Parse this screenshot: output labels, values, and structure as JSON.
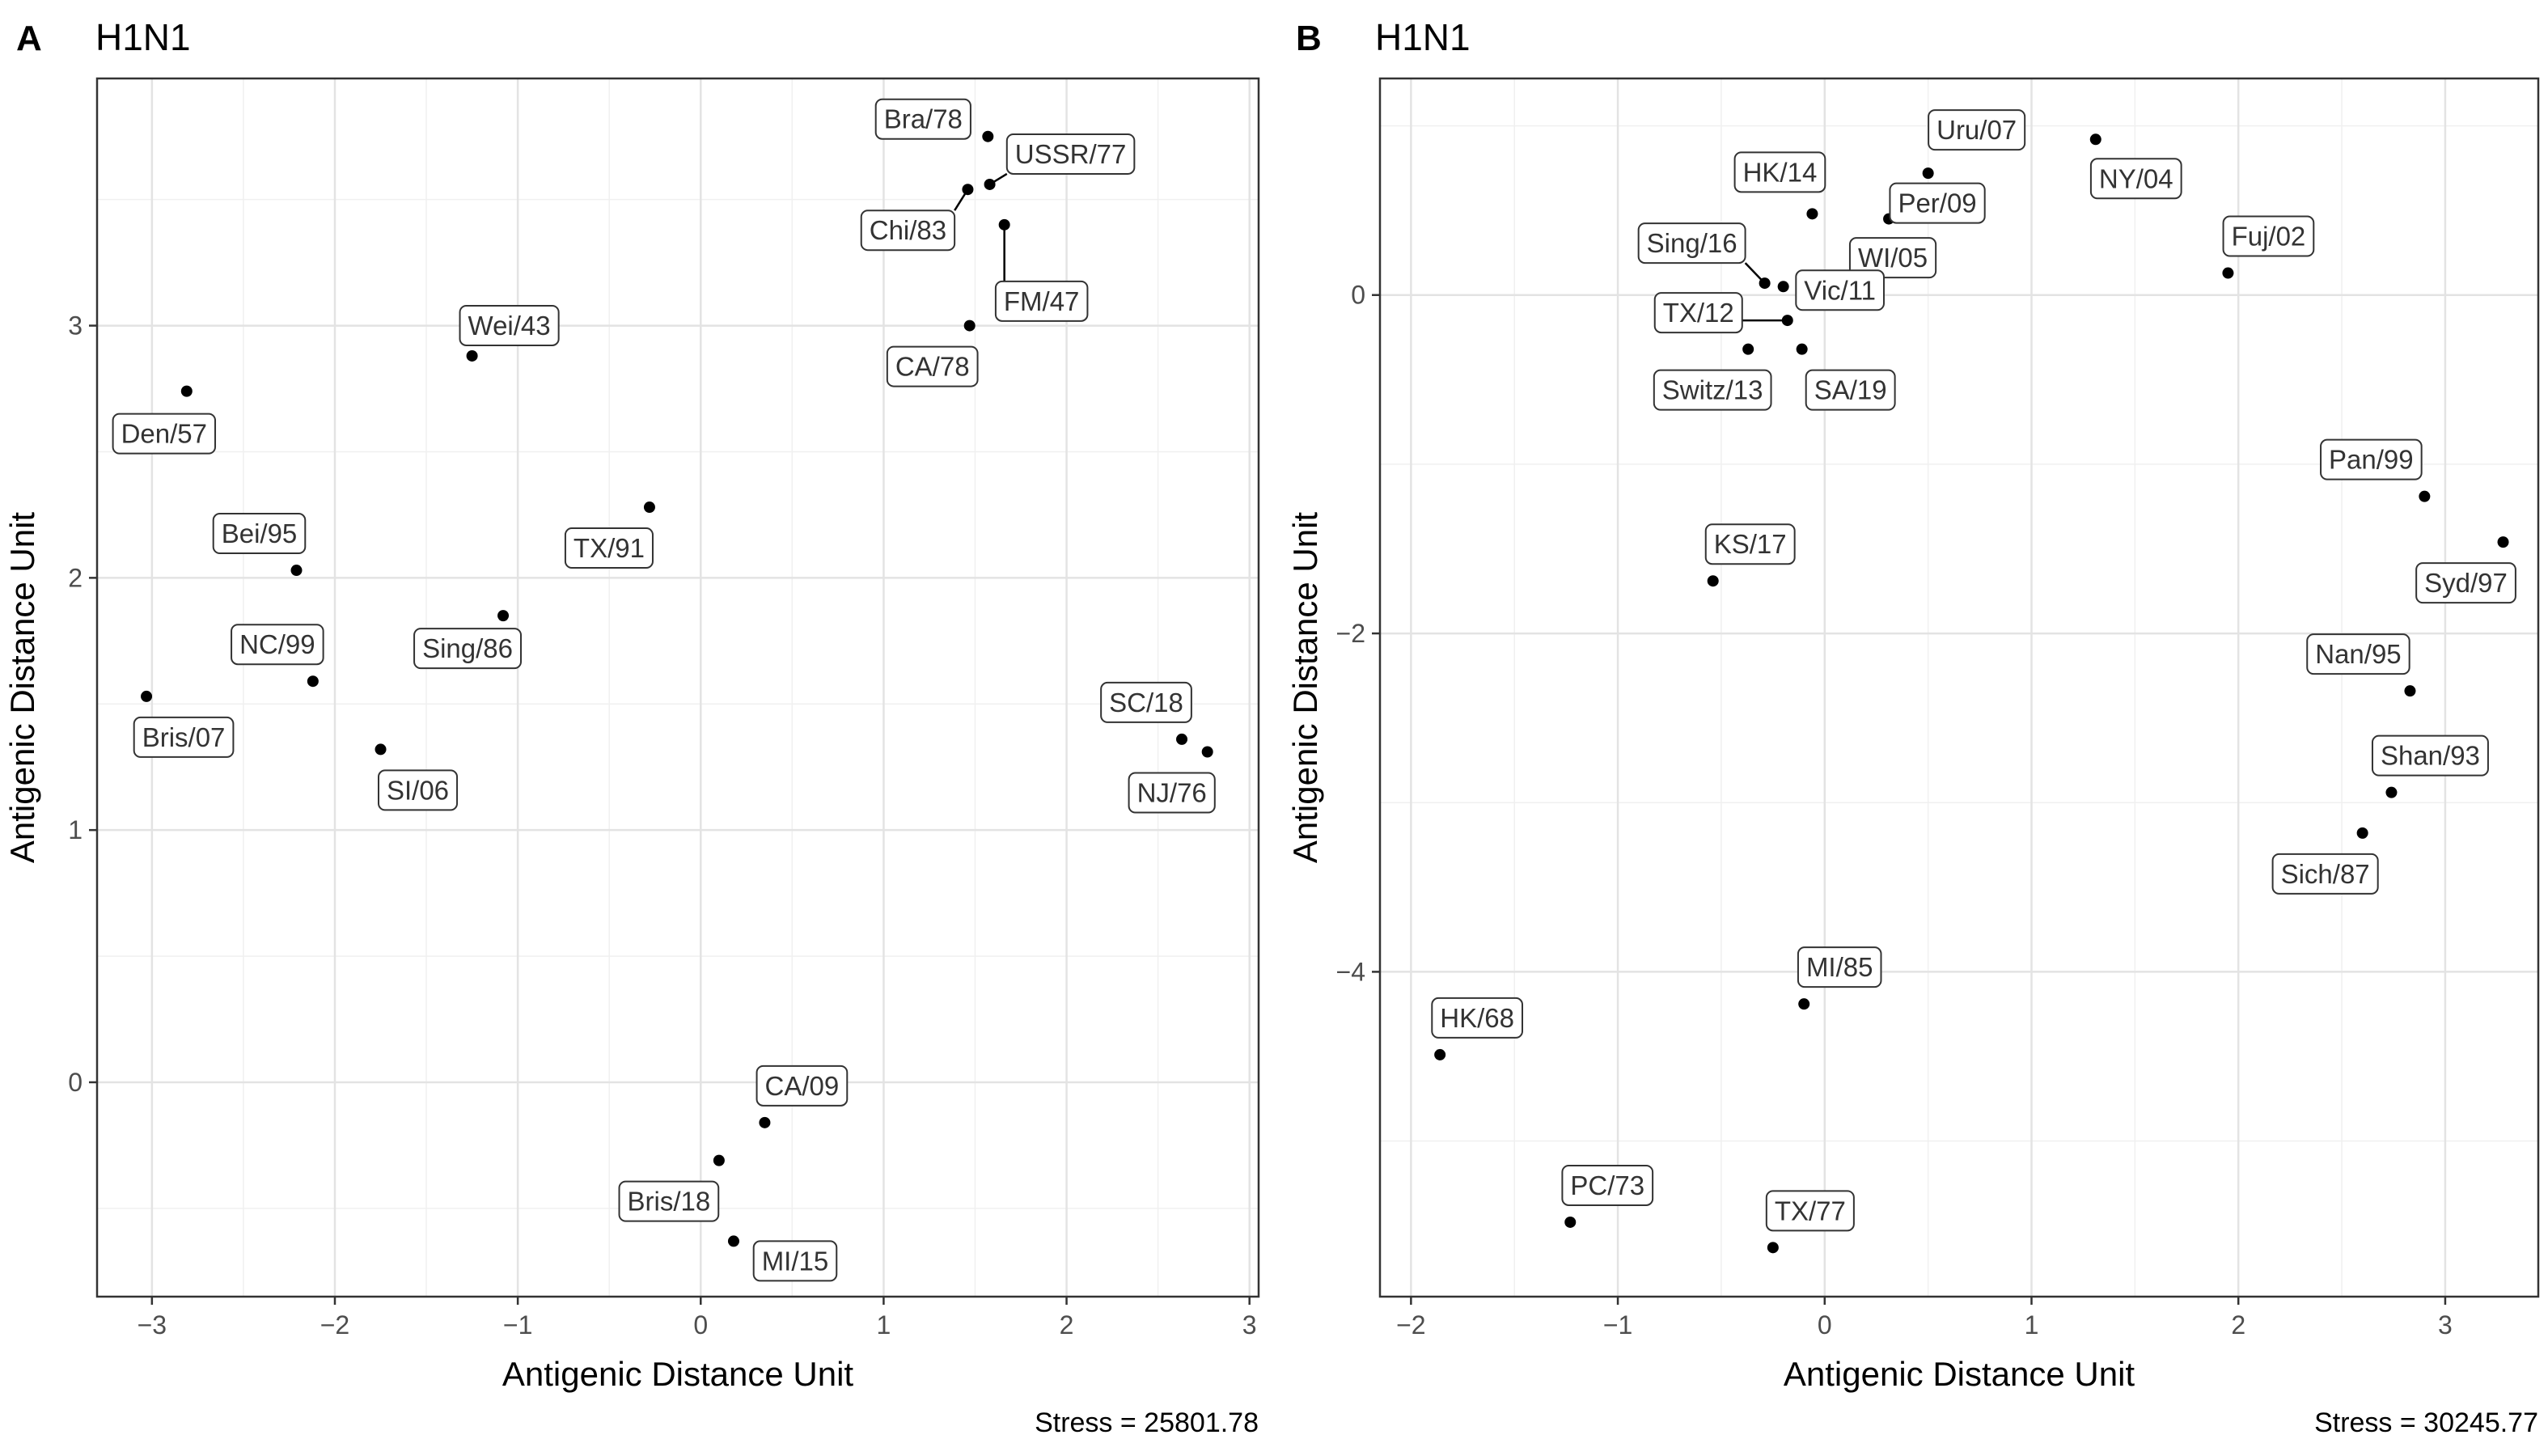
{
  "chart_data": [
    {
      "type": "scatter",
      "panel_letter": "A",
      "title": "H1N1",
      "xlabel": "Antigenic Distance Unit",
      "ylabel": "Antigenic Distance Unit",
      "xlim": [
        -3.3,
        3.05
      ],
      "ylim": [
        -0.85,
        3.98
      ],
      "xticks": [
        -3,
        -2,
        -1,
        0,
        1,
        2,
        3
      ],
      "yticks": [
        0,
        1,
        2,
        3
      ],
      "grid": true,
      "stress_text": "Stress = 25801.78",
      "points": [
        {
          "label": "Bra/78",
          "x": 1.57,
          "y": 3.75
        },
        {
          "label": "USSR/77",
          "x": 1.58,
          "y": 3.56
        },
        {
          "label": "Chi/83",
          "x": 1.46,
          "y": 3.54
        },
        {
          "label": "FM/47",
          "x": 1.66,
          "y": 3.4
        },
        {
          "label": "CA/78",
          "x": 1.47,
          "y": 3.0
        },
        {
          "label": "Wei/43",
          "x": -1.25,
          "y": 2.88
        },
        {
          "label": "Den/57",
          "x": -2.81,
          "y": 2.74
        },
        {
          "label": "TX/91",
          "x": -0.28,
          "y": 2.28
        },
        {
          "label": "Bei/95",
          "x": -2.21,
          "y": 2.03
        },
        {
          "label": "Sing/86",
          "x": -1.08,
          "y": 1.85
        },
        {
          "label": "NC/99",
          "x": -2.12,
          "y": 1.59
        },
        {
          "label": "Bris/07",
          "x": -3.03,
          "y": 1.53
        },
        {
          "label": "SI/06",
          "x": -1.75,
          "y": 1.32
        },
        {
          "label": "SC/18",
          "x": 2.63,
          "y": 1.36
        },
        {
          "label": "NJ/76",
          "x": 2.77,
          "y": 1.31
        },
        {
          "label": "CA/09",
          "x": 0.35,
          "y": -0.16
        },
        {
          "label": "Bris/18",
          "x": 0.1,
          "y": -0.31
        },
        {
          "label": "MI/15",
          "x": 0.18,
          "y": -0.63
        }
      ]
    },
    {
      "type": "scatter",
      "panel_letter": "B",
      "title": "H1N1",
      "xlabel": "Antigenic Distance Unit",
      "ylabel": "Antigenic Distance Unit",
      "xlim": [
        -2.15,
        3.45
      ],
      "ylim": [
        -5.92,
        1.28
      ],
      "xticks": [
        -2,
        -1,
        0,
        1,
        2,
        3
      ],
      "yticks": [
        -4,
        -2,
        0
      ],
      "grid": true,
      "stress_text": "Stress = 30245.77",
      "points": [
        {
          "label": "NY/04",
          "x": 1.31,
          "y": 0.92
        },
        {
          "label": "Uru/07",
          "x": 0.5,
          "y": 0.72
        },
        {
          "label": "HK/14",
          "x": -0.06,
          "y": 0.48
        },
        {
          "label": "Per/09",
          "x": 0.31,
          "y": 0.45
        },
        {
          "label": "WI/05",
          "x": 0.22,
          "y": 0.28
        },
        {
          "label": "Fuj/02",
          "x": 1.95,
          "y": 0.13
        },
        {
          "label": "Sing/16",
          "x": -0.29,
          "y": 0.07
        },
        {
          "label": "Vic/11",
          "x": -0.2,
          "y": 0.05
        },
        {
          "label": "TX/12",
          "x": -0.18,
          "y": -0.15
        },
        {
          "label": "Switz/13",
          "x": -0.37,
          "y": -0.32
        },
        {
          "label": "SA/19",
          "x": -0.11,
          "y": -0.32
        },
        {
          "label": "Pan/99",
          "x": 2.9,
          "y": -1.19
        },
        {
          "label": "Syd/97",
          "x": 3.28,
          "y": -1.46
        },
        {
          "label": "KS/17",
          "x": -0.54,
          "y": -1.69
        },
        {
          "label": "Nan/95",
          "x": 2.83,
          "y": -2.34
        },
        {
          "label": "Shan/93",
          "x": 2.74,
          "y": -2.94
        },
        {
          "label": "Sich/87",
          "x": 2.6,
          "y": -3.18
        },
        {
          "label": "MI/85",
          "x": -0.1,
          "y": -4.19
        },
        {
          "label": "HK/68",
          "x": -1.86,
          "y": -4.49
        },
        {
          "label": "PC/73",
          "x": -1.23,
          "y": -5.48
        },
        {
          "label": "TX/77",
          "x": -0.25,
          "y": -5.63
        }
      ]
    }
  ]
}
